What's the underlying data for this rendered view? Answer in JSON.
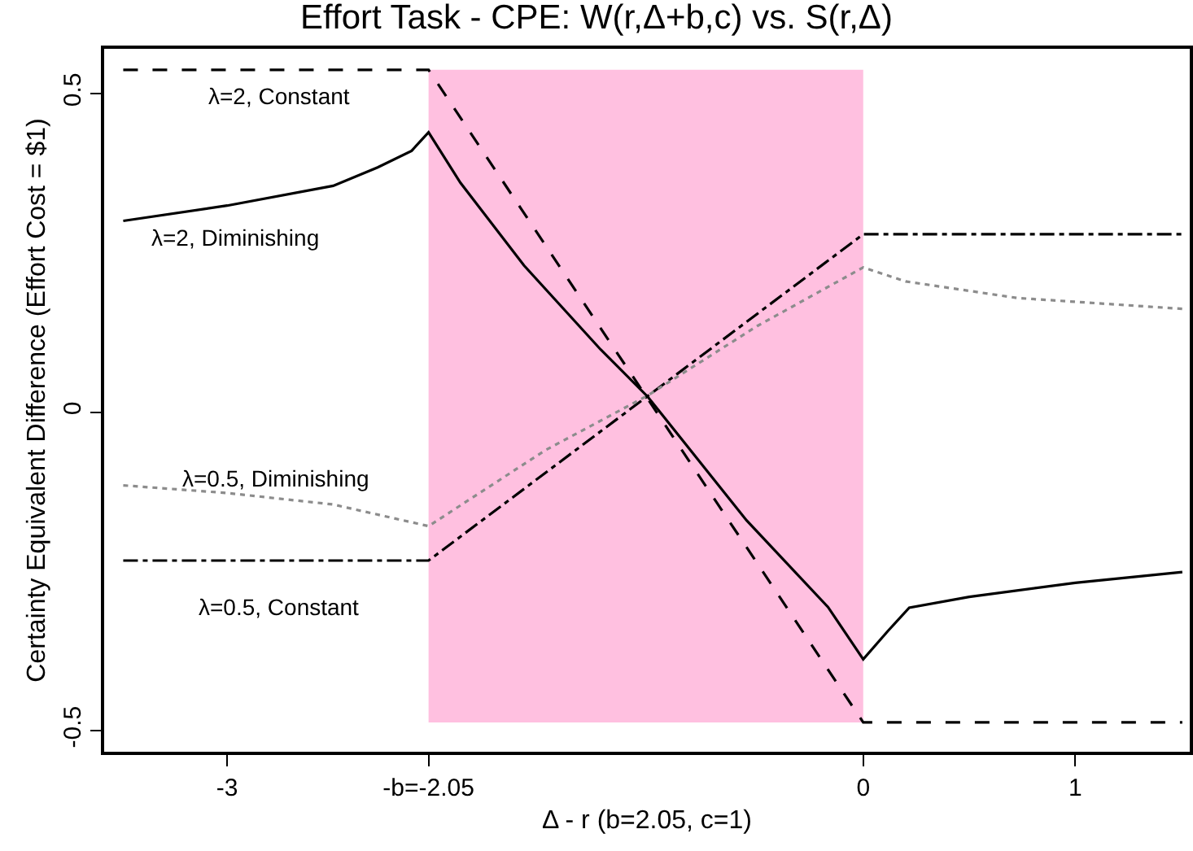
{
  "chart_data": {
    "type": "line",
    "title": "Effort Task - CPE: W(r,Δ+b,c) vs. S(r,Δ)",
    "xlabel": "Δ - r (b=2.05, c=1)",
    "ylabel": "Certainty Equivalent Difference (Effort Cost = $1)",
    "xlim": [
      -3.58,
      1.54
    ],
    "ylim": [
      -0.533,
      0.57
    ],
    "xticks": [
      -3,
      {
        "value": -2.05,
        "label": "-b=-2.05"
      },
      0,
      1
    ],
    "yticks": [
      0.5,
      0,
      -0.5
    ],
    "grid": false,
    "legend": false,
    "marker": "none",
    "bands": [
      {
        "axis": "x",
        "from": -2.05,
        "to": 0,
        "color": "#ffc0e0"
      }
    ],
    "series": [
      {
        "name": "λ=2, Constant",
        "color": "#000000",
        "line_style": "dashed",
        "x": [
          -3.49,
          -2.05,
          0,
          1.505
        ],
        "values": [
          0.537,
          0.537,
          -0.487,
          -0.487
        ]
      },
      {
        "name": "λ=2, Diminishing",
        "color": "#000000",
        "line_style": "solid",
        "x": [
          -3.49,
          -3.0,
          -2.5,
          -2.29,
          -2.13,
          -2.05,
          -1.9,
          -1.6,
          -1.238,
          -1.016,
          -0.55,
          -0.166,
          0,
          0.115,
          0.217,
          0.5,
          1.0,
          1.505
        ],
        "values": [
          0.3,
          0.324,
          0.355,
          0.384,
          0.41,
          0.439,
          0.36,
          0.23,
          0.098,
          0.024,
          -0.17,
          -0.306,
          -0.388,
          -0.344,
          -0.307,
          -0.29,
          -0.268,
          -0.251
        ]
      },
      {
        "name": "λ=0.5, Constant",
        "color": "#000000",
        "line_style": "dashdot",
        "x": [
          -3.49,
          -2.05,
          0,
          1.505
        ],
        "values": [
          -0.233,
          -0.233,
          0.279,
          0.279
        ]
      },
      {
        "name": "λ=0.5, Diminishing",
        "color": "#8c8c8c",
        "line_style": "dotted",
        "x": [
          -3.49,
          -3.0,
          -2.5,
          -2.05,
          -1.5,
          -1.016,
          -0.5,
          0,
          0.2,
          0.727,
          1.505
        ],
        "values": [
          -0.115,
          -0.127,
          -0.145,
          -0.179,
          -0.06,
          0.026,
          0.135,
          0.227,
          0.205,
          0.179,
          0.162
        ]
      }
    ]
  }
}
